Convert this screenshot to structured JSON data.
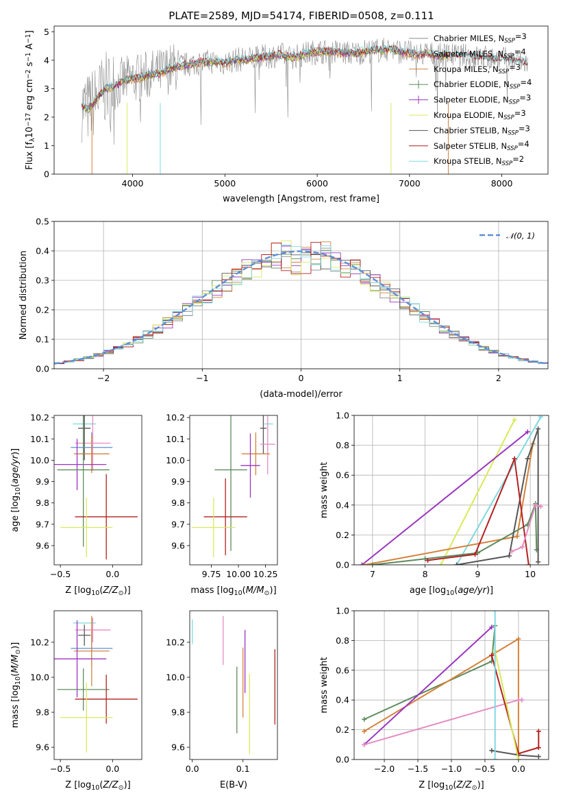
{
  "figure": {
    "title": "PLATE=2589, MJD=54174, FIBERID=0508, z=0.111"
  },
  "colors": {
    "chab_miles": "#8a8a8a",
    "salp_miles": "#a8a8a8",
    "krou_miles": "#d4813a",
    "chab_elod": "#5d8a5d",
    "salp_elod": "#9a35c0",
    "krou_elod": "#d8ea5a",
    "chab_stel": "#555555",
    "salp_stel": "#b41f1f",
    "krou_stel": "#7fd9e0",
    "pink": "#e58cc2",
    "blue": "#5b8fd6"
  },
  "chart_data": [
    {
      "id": "spectrum",
      "type": "line",
      "title": "PLATE=2589, MJD=54174, FIBERID=0508, z=0.111",
      "xlabel": "wavelength [Angstrom, rest frame]",
      "ylabel": "Flux [f_λ 10^-17 erg cm^-2 s^-1 A^-1]",
      "xlim": [
        3150,
        8500
      ],
      "ylim": [
        0,
        5.2
      ],
      "xticks": [
        "4000",
        "5000",
        "6000",
        "7000",
        "8000"
      ],
      "yticks": [
        "0",
        "1",
        "2",
        "3",
        "4",
        "5"
      ],
      "legend_location": "right",
      "spectrum_points": [
        [
          3450,
          2.4
        ],
        [
          3520,
          2.3
        ],
        [
          3600,
          2.6
        ],
        [
          3700,
          3.0
        ],
        [
          3800,
          3.1
        ],
        [
          3900,
          3.25
        ],
        [
          4000,
          3.35
        ],
        [
          4100,
          3.4
        ],
        [
          4200,
          3.5
        ],
        [
          4300,
          3.55
        ],
        [
          4400,
          3.7
        ],
        [
          4500,
          3.8
        ],
        [
          4600,
          3.85
        ],
        [
          4700,
          3.9
        ],
        [
          4800,
          3.95
        ],
        [
          4900,
          3.95
        ],
        [
          5000,
          3.9
        ],
        [
          5100,
          4.0
        ],
        [
          5200,
          4.05
        ],
        [
          5300,
          4.05
        ],
        [
          5400,
          4.1
        ],
        [
          5500,
          4.15
        ],
        [
          5600,
          4.2
        ],
        [
          5700,
          4.1
        ],
        [
          5800,
          4.15
        ],
        [
          5900,
          4.25
        ],
        [
          6000,
          4.3
        ],
        [
          6100,
          4.3
        ],
        [
          6200,
          4.3
        ],
        [
          6300,
          4.25
        ],
        [
          6400,
          4.25
        ],
        [
          6500,
          4.3
        ],
        [
          6600,
          4.35
        ],
        [
          6700,
          4.35
        ],
        [
          6800,
          4.4
        ],
        [
          6900,
          4.3
        ],
        [
          7000,
          4.25
        ],
        [
          7100,
          4.2
        ],
        [
          7200,
          4.25
        ],
        [
          7300,
          4.15
        ],
        [
          7400,
          4.2
        ],
        [
          7500,
          4.15
        ],
        [
          7600,
          4.15
        ],
        [
          7700,
          4.1
        ],
        [
          7800,
          4.1
        ],
        [
          7900,
          4.05
        ],
        [
          8000,
          4.05
        ],
        [
          8100,
          4.0
        ],
        [
          8200,
          3.95
        ],
        [
          8280,
          3.9
        ]
      ],
      "model_end_wavelength": [
        7420,
        8280
      ],
      "series": [
        {
          "name": "Chabrier MILES, N_SSP=3",
          "color": "#8a8a8a"
        },
        {
          "name": "Salpeter MILES, N_SSP=4",
          "color": "#a8a8a8"
        },
        {
          "name": "Kroupa MILES, N_SSP=3",
          "color": "#d4813a"
        },
        {
          "name": "Chabrier ELODIE, N_SSP=4",
          "color": "#5d8a5d"
        },
        {
          "name": "Salpeter ELODIE, N_SSP=3",
          "color": "#9a35c0"
        },
        {
          "name": "Kroupa ELODIE, N_SSP=3",
          "color": "#d8ea5a"
        },
        {
          "name": "Chabrier STELIB, N_SSP=3",
          "color": "#555555"
        },
        {
          "name": "Salpeter STELIB, N_SSP=4",
          "color": "#b41f1f"
        },
        {
          "name": "Kroupa STELIB, N_SSP=2",
          "color": "#7fd9e0"
        }
      ]
    },
    {
      "id": "residuals",
      "type": "histogram",
      "xlabel": "(data-model)/error",
      "ylabel": "Normed distribution",
      "xlim": [
        -2.5,
        2.5
      ],
      "ylim": [
        0,
        0.5
      ],
      "xticks": [
        "−2",
        "−1",
        "0",
        "1",
        "2"
      ],
      "yticks": [
        "0.0",
        "0.1",
        "0.2",
        "0.3",
        "0.4",
        "0.5"
      ],
      "grid": true,
      "legend_location": "top-right",
      "reference_curve": {
        "name": "N(0,1)",
        "label_math": "𝒩(0, 1)",
        "mean": 0,
        "sigma": 1,
        "color": "#5b8fd6"
      },
      "bin_width": 0.1
    },
    {
      "id": "age_vs_Z",
      "type": "errorbar",
      "xlabel": "Z [log10(Z/Z⊙)]",
      "ylabel": "age  [log10(age/yr)]",
      "xlim": [
        -0.56,
        0.28
      ],
      "ylim": [
        9.51,
        10.21
      ],
      "xticks": [
        "−0.5",
        "0.0"
      ],
      "yticks": [
        "9.6",
        "9.7",
        "9.8",
        "9.9",
        "10.0",
        "10.1",
        "10.2"
      ],
      "points": [
        {
          "x": -0.27,
          "xerr": 0.11,
          "y": 10.17,
          "yerr": 0.0,
          "color": "#7fd9e0"
        },
        {
          "x": -0.19,
          "xerr": 0.17,
          "y": 10.08,
          "yerr": 0.13,
          "color": "#e58cc2"
        },
        {
          "x": -0.27,
          "xerr": 0.06,
          "y": 10.15,
          "yerr": 0.15,
          "color": "#555555"
        },
        {
          "x": -0.2,
          "xerr": 0.2,
          "y": 10.06,
          "yerr": 0.07,
          "color": "#5b8fd6"
        },
        {
          "x": -0.2,
          "xerr": 0.17,
          "y": 10.03,
          "yerr": 0.09,
          "color": "#d4813a"
        },
        {
          "x": -0.34,
          "xerr": 0.28,
          "y": 9.98,
          "yerr": 0.12,
          "color": "#9a35c0"
        },
        {
          "x": -0.28,
          "xerr": 0.25,
          "y": 9.955,
          "yerr": 0.36,
          "color": "#5d8a5d"
        },
        {
          "x": -0.06,
          "xerr": 0.3,
          "y": 9.735,
          "yerr": 0.2,
          "color": "#b41f1f"
        },
        {
          "x": -0.25,
          "xerr": 0.25,
          "y": 9.685,
          "yerr": 0.14,
          "color": "#d8ea5a"
        }
      ]
    },
    {
      "id": "age_vs_mass",
      "type": "errorbar",
      "xlabel": "mass [log10(M/M⊙)]",
      "ylabel": "",
      "xlim": [
        9.55,
        10.36
      ],
      "ylim": [
        9.51,
        10.21
      ],
      "xticks": [
        "9.75",
        "10.00",
        "10.25"
      ],
      "yticks": [
        "9.6",
        "9.7",
        "9.8",
        "9.9",
        "10.0",
        "10.1",
        "10.2"
      ],
      "points": [
        {
          "x": 10.28,
          "xerr": 0.04,
          "y": 10.17,
          "yerr": 0.0,
          "color": "#7fd9e0"
        },
        {
          "x": 10.23,
          "xerr": 0.03,
          "y": 10.15,
          "yerr": 0.12,
          "color": "#555555"
        },
        {
          "x": 10.27,
          "xerr": 0.07,
          "y": 10.075,
          "yerr": 0.14,
          "color": "#e58cc2"
        },
        {
          "x": 10.16,
          "xerr": 0.13,
          "y": 10.03,
          "yerr": 0.1,
          "color": "#d4813a"
        },
        {
          "x": 10.11,
          "xerr": 0.09,
          "y": 9.975,
          "yerr": 0.15,
          "color": "#9a35c0"
        },
        {
          "x": 9.93,
          "xerr": 0.15,
          "y": 9.955,
          "yerr": 0.38,
          "color": "#5d8a5d"
        },
        {
          "x": 9.88,
          "xerr": 0.2,
          "y": 9.735,
          "yerr": 0.18,
          "color": "#b41f1f"
        },
        {
          "x": 9.77,
          "xerr": 0.2,
          "y": 9.685,
          "yerr": 0.14,
          "color": "#d8ea5a"
        }
      ]
    },
    {
      "id": "mass_weight_vs_age",
      "type": "line",
      "xlabel": "age  [log10(age/yr)]",
      "ylabel": "mass weight",
      "xlim": [
        6.65,
        10.35
      ],
      "ylim": [
        0,
        1
      ],
      "xticks": [
        "7",
        "8",
        "9",
        "10"
      ],
      "yticks": [
        "0.0",
        "0.2",
        "0.4",
        "0.6",
        "0.8",
        "1.0"
      ],
      "grid": true,
      "series": [
        {
          "color": "#d8ea5a",
          "points": [
            [
              8.3,
              0.0
            ],
            [
              9.7,
              0.97
            ]
          ]
        },
        {
          "color": "#7fd9e0",
          "points": [
            [
              8.6,
              0.0
            ],
            [
              10.2,
              0.99
            ]
          ]
        },
        {
          "color": "#9a35c0",
          "points": [
            [
              6.8,
              0.0
            ],
            [
              9.95,
              0.89
            ]
          ]
        },
        {
          "color": "#d4813a",
          "points": [
            [
              6.85,
              0.0
            ],
            [
              9.75,
              0.19
            ],
            [
              10.05,
              0.81
            ]
          ]
        },
        {
          "color": "#5d8a5d",
          "points": [
            [
              7.0,
              0.0
            ],
            [
              8.0,
              0.04
            ],
            [
              9.0,
              0.08
            ],
            [
              9.95,
              0.27
            ],
            [
              10.1,
              0.41
            ],
            [
              10.12,
              0.1
            ]
          ]
        },
        {
          "color": "#555555",
          "points": [
            [
              8.6,
              0.0
            ],
            [
              9.6,
              0.06
            ],
            [
              9.95,
              0.71
            ],
            [
              10.15,
              0.91
            ],
            [
              10.15,
              0.02
            ]
          ]
        },
        {
          "color": "#b41f1f",
          "points": [
            [
              8.05,
              0.03
            ],
            [
              8.95,
              0.07
            ],
            [
              9.7,
              0.71
            ],
            [
              9.97,
              0.0
            ]
          ]
        },
        {
          "color": "#e58cc2",
          "points": [
            [
              9.65,
              0.09
            ],
            [
              9.85,
              0.12
            ],
            [
              10.1,
              0.4
            ],
            [
              10.2,
              0.39
            ]
          ]
        }
      ]
    },
    {
      "id": "mass_vs_Z",
      "type": "errorbar",
      "xlabel": "Z [log10(Z/Z⊙)]",
      "ylabel": "mass [log10(M/M⊙)]",
      "xlim": [
        -0.56,
        0.28
      ],
      "ylim": [
        9.53,
        10.38
      ],
      "xticks": [
        "−0.5",
        "0.0"
      ],
      "yticks": [
        "9.6",
        "9.8",
        "10.0",
        "10.2"
      ],
      "points": [
        {
          "x": -0.27,
          "xerr": 0.11,
          "y": 10.31,
          "yerr": 0.0,
          "color": "#7fd9e0"
        },
        {
          "x": -0.19,
          "xerr": 0.17,
          "y": 10.27,
          "yerr": 0.07,
          "color": "#e58cc2"
        },
        {
          "x": -0.27,
          "xerr": 0.06,
          "y": 10.24,
          "yerr": 0.06,
          "color": "#555555"
        },
        {
          "x": -0.2,
          "xerr": 0.2,
          "y": 10.165,
          "yerr": 0.1,
          "color": "#5b8fd6"
        },
        {
          "x": -0.2,
          "xerr": 0.17,
          "y": 10.15,
          "yerr": 0.2,
          "color": "#d4813a"
        },
        {
          "x": -0.34,
          "xerr": 0.28,
          "y": 10.105,
          "yerr": 0.22,
          "color": "#9a35c0"
        },
        {
          "x": -0.28,
          "xerr": 0.25,
          "y": 9.93,
          "yerr": 0.12,
          "color": "#5d8a5d"
        },
        {
          "x": -0.06,
          "xerr": 0.3,
          "y": 9.875,
          "yerr": 0.14,
          "color": "#b41f1f"
        },
        {
          "x": -0.25,
          "xerr": 0.25,
          "y": 9.77,
          "yerr": 0.2,
          "color": "#d8ea5a"
        }
      ]
    },
    {
      "id": "mass_vs_ebv",
      "type": "errorbar",
      "xlabel": "E(B-V)",
      "ylabel": "",
      "xlim": [
        -0.005,
        0.168
      ],
      "ylim": [
        9.53,
        10.38
      ],
      "xticks": [
        "0.0",
        "0.1"
      ],
      "yticks": [
        "9.6",
        "9.8",
        "10.0",
        "10.2"
      ],
      "points": [
        {
          "x": 0.0,
          "xerr": 0,
          "y": 10.26,
          "yerr": 0.07,
          "color": "#7fd9e0"
        },
        {
          "x": 0.061,
          "xerr": 0,
          "y": 10.21,
          "yerr": 0.14,
          "color": "#e58cc2"
        },
        {
          "x": 0.104,
          "xerr": 0,
          "y": 10.09,
          "yerr": 0.18,
          "color": "#9a35c0"
        },
        {
          "x": 0.1,
          "xerr": 0,
          "y": 9.97,
          "yerr": 0.2,
          "color": "#d4813a"
        },
        {
          "x": 0.088,
          "xerr": 0,
          "y": 9.87,
          "yerr": 0.19,
          "color": "#5d8a5d"
        },
        {
          "x": 0.113,
          "xerr": 0,
          "y": 9.79,
          "yerr": 0.23,
          "color": "#d8ea5a"
        },
        {
          "x": 0.163,
          "xerr": 0,
          "y": 9.945,
          "yerr": 0.215,
          "color": "#b41f1f"
        }
      ]
    },
    {
      "id": "mass_weight_vs_Z",
      "type": "line",
      "xlabel": "Z [log10(Z/Z⊙)]",
      "ylabel": "mass weight",
      "xlim": [
        -2.45,
        0.45
      ],
      "ylim": [
        0,
        1
      ],
      "xticks": [
        "−2.0",
        "−1.5",
        "−1.0",
        "−0.5",
        "0.0"
      ],
      "yticks": [
        "0.0",
        "0.2",
        "0.4",
        "0.6",
        "0.8",
        "1.0"
      ],
      "grid": true,
      "series": [
        {
          "color": "#5d8a5d",
          "points": [
            [
              -2.3,
              0.27
            ],
            [
              -0.4,
              0.66
            ],
            [
              -0.35,
              0.9
            ]
          ]
        },
        {
          "color": "#d4813a",
          "points": [
            [
              -2.3,
              0.19
            ],
            [
              0.0,
              0.81
            ],
            [
              0.0,
              0.0
            ]
          ]
        },
        {
          "color": "#9a35c0",
          "points": [
            [
              -2.3,
              0.1
            ],
            [
              -0.4,
              0.89
            ]
          ]
        },
        {
          "color": "#e58cc2",
          "points": [
            [
              -2.3,
              0.1
            ],
            [
              0.0,
              0.4
            ],
            [
              0.05,
              0.4
            ]
          ]
        },
        {
          "color": "#555555",
          "points": [
            [
              -0.4,
              0.06
            ],
            [
              0.0,
              0.03
            ],
            [
              0.3,
              0.02
            ]
          ]
        },
        {
          "color": "#b41f1f",
          "points": [
            [
              -0.4,
              0.7
            ],
            [
              0.0,
              0.04
            ],
            [
              0.3,
              0.08
            ],
            [
              0.3,
              0.19
            ]
          ]
        },
        {
          "color": "#d8ea5a",
          "points": [
            [
              -0.35,
              0.73
            ],
            [
              0.0,
              0.0
            ]
          ]
        },
        {
          "color": "#7fd9e0",
          "points": [
            [
              -0.35,
              1.0
            ],
            [
              -0.35,
              0.0
            ]
          ]
        }
      ]
    }
  ]
}
